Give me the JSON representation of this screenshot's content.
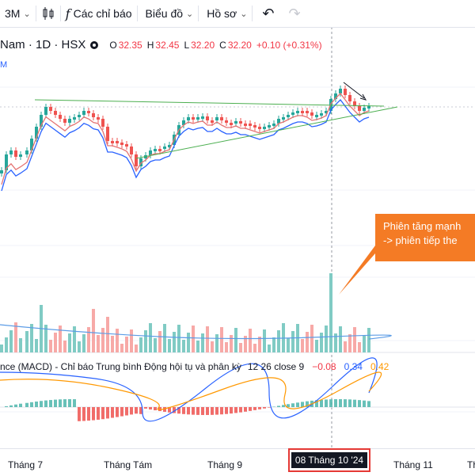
{
  "toolbar": {
    "interval": "3M",
    "indicators_label": "Các chỉ báo",
    "chart_type_label": "Biểu đồ",
    "profile_label": "Hồ sơ"
  },
  "legend": {
    "symbol_text": "Nam · 1D · HSX",
    "open_label": "O",
    "open": "32.35",
    "high_label": "H",
    "high": "32.45",
    "low_label": "L",
    "low": "32.20",
    "close_label": "C",
    "close": "32.20",
    "change": "+0.10 (+0.31%)",
    "ma_label": "M"
  },
  "macd": {
    "title": "nce (MACD) - Chỉ báo Trung bình Động hội tụ và phân kỳ",
    "params": "12 26 close 9",
    "histogram": "−0.08",
    "macd_line": "0.34",
    "signal": "0.42"
  },
  "callout": {
    "line1": "Phiên tăng mạnh",
    "line2": "-> phiên tiếp the"
  },
  "xaxis": {
    "labels": [
      "Tháng 7",
      "Tháng Tám",
      "Tháng 9",
      "Tháng 11",
      "Tháng"
    ],
    "cursor_date": "08 Tháng 10 '24"
  },
  "colors": {
    "up": "#26a69a",
    "down": "#ef5350",
    "ma_fast": "#e57373",
    "ma_slow": "#2962ff",
    "trendline": "#4caf50",
    "callout": "#f47b25",
    "highlight_border": "#e53935"
  }
}
